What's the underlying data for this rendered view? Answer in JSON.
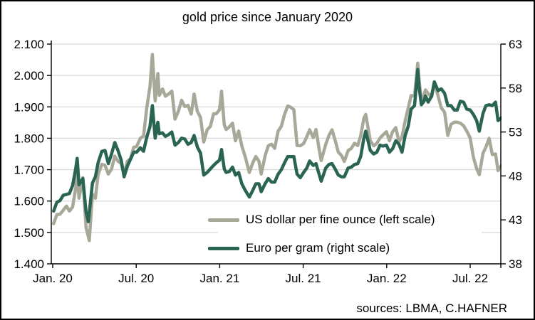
{
  "title": "gold price since January 2020",
  "source_note": "sources: LBMA, C.HAFNER",
  "colors": {
    "usd_line": "#a8a899",
    "eur_line": "#2a6453",
    "gridline": "#d9d9d9",
    "axis": "#000000",
    "background": "#ffffff",
    "border": "#000000",
    "text": "#000000"
  },
  "legend": [
    {
      "label": "US dollar per fine ounce (left scale)",
      "color": "#a8a899"
    },
    {
      "label": "Euro per gram (right scale)",
      "color": "#2a6453"
    }
  ],
  "chart_data": {
    "type": "line",
    "title": "gold price since January 2020",
    "xlabel": "",
    "grid": true,
    "legend_position": "inside lower center-right",
    "left_axis": {
      "name": "US dollar per fine ounce",
      "min": 1400,
      "max": 2100,
      "ticks": [
        {
          "label": "2.100",
          "value": 2100
        },
        {
          "label": "2.000",
          "value": 2000
        },
        {
          "label": "1.900",
          "value": 1900
        },
        {
          "label": "1.800",
          "value": 1800
        },
        {
          "label": "1.700",
          "value": 1700
        },
        {
          "label": "1.600",
          "value": 1600
        },
        {
          "label": "1.500",
          "value": 1500
        },
        {
          "label": "1.400",
          "value": 1400
        }
      ]
    },
    "right_axis": {
      "name": "Euro per gram",
      "min": 38,
      "max": 63,
      "ticks": [
        {
          "label": "63",
          "value": 63
        },
        {
          "label": "58",
          "value": 58
        },
        {
          "label": "53",
          "value": 53
        },
        {
          "label": "48",
          "value": 48
        },
        {
          "label": "43",
          "value": 43
        },
        {
          "label": "38",
          "value": 38
        }
      ]
    },
    "x_ticks": [
      {
        "label": "Jan. 20",
        "month": 0
      },
      {
        "label": "Jul. 20",
        "month": 6
      },
      {
        "label": "Jan. 21",
        "month": 12
      },
      {
        "label": "Jul. 21",
        "month": 18
      },
      {
        "label": "Jan. 22",
        "month": 24
      },
      {
        "label": "Jul. 22",
        "month": 30
      }
    ],
    "dates": [
      "2020-01-03",
      "2020-01-10",
      "2020-01-17",
      "2020-01-24",
      "2020-01-31",
      "2020-02-07",
      "2020-02-14",
      "2020-02-21",
      "2020-02-24",
      "2020-02-28",
      "2020-03-06",
      "2020-03-13",
      "2020-03-18",
      "2020-03-20",
      "2020-03-27",
      "2020-04-03",
      "2020-04-09",
      "2020-04-17",
      "2020-04-24",
      "2020-05-01",
      "2020-05-08",
      "2020-05-15",
      "2020-05-22",
      "2020-05-29",
      "2020-06-05",
      "2020-06-12",
      "2020-06-19",
      "2020-06-26",
      "2020-07-02",
      "2020-07-10",
      "2020-07-17",
      "2020-07-24",
      "2020-07-31",
      "2020-08-06",
      "2020-08-12",
      "2020-08-18",
      "2020-08-21",
      "2020-08-28",
      "2020-09-04",
      "2020-09-11",
      "2020-09-18",
      "2020-09-25",
      "2020-10-02",
      "2020-10-09",
      "2020-10-16",
      "2020-10-23",
      "2020-10-30",
      "2020-11-06",
      "2020-11-13",
      "2020-11-20",
      "2020-11-27",
      "2020-12-04",
      "2020-12-11",
      "2020-12-18",
      "2020-12-24",
      "2020-12-31",
      "2021-01-05",
      "2021-01-11",
      "2021-01-15",
      "2021-01-22",
      "2021-01-29",
      "2021-02-05",
      "2021-02-12",
      "2021-02-19",
      "2021-02-26",
      "2021-03-05",
      "2021-03-12",
      "2021-03-19",
      "2021-03-26",
      "2021-03-31",
      "2021-04-09",
      "2021-04-16",
      "2021-04-23",
      "2021-04-30",
      "2021-05-07",
      "2021-05-14",
      "2021-05-21",
      "2021-05-28",
      "2021-06-04",
      "2021-06-11",
      "2021-06-18",
      "2021-06-25",
      "2021-07-02",
      "2021-07-09",
      "2021-07-15",
      "2021-07-23",
      "2021-07-29",
      "2021-08-06",
      "2021-08-10",
      "2021-08-20",
      "2021-08-27",
      "2021-09-03",
      "2021-09-10",
      "2021-09-17",
      "2021-09-24",
      "2021-09-30",
      "2021-10-08",
      "2021-10-15",
      "2021-10-22",
      "2021-10-29",
      "2021-11-05",
      "2021-11-12",
      "2021-11-16",
      "2021-11-26",
      "2021-12-03",
      "2021-12-10",
      "2021-12-17",
      "2021-12-23",
      "2021-12-31",
      "2022-01-07",
      "2022-01-14",
      "2022-01-21",
      "2022-01-28",
      "2022-02-04",
      "2022-02-11",
      "2022-02-18",
      "2022-02-24",
      "2022-03-01",
      "2022-03-08",
      "2022-03-11",
      "2022-03-16",
      "2022-03-22",
      "2022-03-25",
      "2022-03-31",
      "2022-04-08",
      "2022-04-14",
      "2022-04-22",
      "2022-04-29",
      "2022-05-06",
      "2022-05-13",
      "2022-05-20",
      "2022-05-27",
      "2022-06-03",
      "2022-06-10",
      "2022-06-17",
      "2022-06-24",
      "2022-07-01",
      "2022-07-08",
      "2022-07-15",
      "2022-07-21",
      "2022-07-29",
      "2022-08-05",
      "2022-08-12",
      "2022-08-19",
      "2022-08-26",
      "2022-09-01",
      "2022-09-08"
    ],
    "series": [
      {
        "name": "US dollar per fine ounce (left scale)",
        "axis": "left",
        "color": "#a8a899",
        "values": [
          1528,
          1557,
          1558,
          1571,
          1584,
          1568,
          1581,
          1643,
          1689,
          1609,
          1674,
          1516,
          1487,
          1474,
          1621,
          1609,
          1684,
          1717,
          1714,
          1686,
          1702,
          1743,
          1727,
          1720,
          1683,
          1727,
          1735,
          1771,
          1774,
          1800,
          1807,
          1897,
          1964,
          2067,
          1919,
          2006,
          1937,
          1957,
          1934,
          1941,
          1950,
          1861,
          1886,
          1921,
          1901,
          1905,
          1877,
          1941,
          1886,
          1866,
          1788,
          1827,
          1838,
          1878,
          1878,
          1891,
          1950,
          1843,
          1828,
          1836,
          1848,
          1792,
          1823,
          1775,
          1743,
          1691,
          1720,
          1742,
          1727,
          1686,
          1744,
          1776,
          1781,
          1768,
          1823,
          1838,
          1876,
          1903,
          1899,
          1891,
          1777,
          1776,
          1783,
          1805,
          1827,
          1802,
          1828,
          1761,
          1729,
          1781,
          1809,
          1827,
          1794,
          1756,
          1745,
          1726,
          1761,
          1768,
          1784,
          1777,
          1808,
          1864,
          1876,
          1792,
          1776,
          1784,
          1801,
          1810,
          1821,
          1792,
          1821,
          1834,
          1788,
          1805,
          1856,
          1898,
          1936,
          1935,
          2039,
          1985,
          1918,
          1938,
          1954,
          1942,
          1932,
          1978,
          1935,
          1897,
          1883,
          1809,
          1844,
          1851,
          1851,
          1848,
          1840,
          1823,
          1801,
          1740,
          1704,
          1684,
          1752,
          1772,
          1800,
          1748,
          1750,
          1697,
          1713
        ]
      },
      {
        "name": "Euro per gram (right scale)",
        "axis": "right",
        "color": "#2a6453",
        "values": [
          44.0,
          45.0,
          45.2,
          45.8,
          45.9,
          46.0,
          46.9,
          48.9,
          50.0,
          47.0,
          47.7,
          43.9,
          42.8,
          43.8,
          47.2,
          47.9,
          49.5,
          50.8,
          50.9,
          49.4,
          50.5,
          51.8,
          50.9,
          49.8,
          47.9,
          49.1,
          49.9,
          50.7,
          50.7,
          51.2,
          50.8,
          52.4,
          53.6,
          56.0,
          52.3,
          54.1,
          52.8,
          52.9,
          52.5,
          52.7,
          53.0,
          51.5,
          51.8,
          52.3,
          52.2,
          51.6,
          51.8,
          52.6,
          51.3,
          50.6,
          48.1,
          48.4,
          48.8,
          49.2,
          49.5,
          49.8,
          51.0,
          48.8,
          48.4,
          48.5,
          49.0,
          48.1,
          48.4,
          47.1,
          46.4,
          45.6,
          46.3,
          47.1,
          47.1,
          46.2,
          47.1,
          47.7,
          47.3,
          47.3,
          48.2,
          48.7,
          49.5,
          50.2,
          50.2,
          50.2,
          48.2,
          47.8,
          48.4,
          48.9,
          49.7,
          49.2,
          49.4,
          48.1,
          47.4,
          48.9,
          49.3,
          49.4,
          48.8,
          48.1,
          47.9,
          47.9,
          48.9,
          49.0,
          49.3,
          49.4,
          50.2,
          52.3,
          53.1,
          50.9,
          50.5,
          50.7,
          51.5,
          51.4,
          51.5,
          50.7,
          51.1,
          52.0,
          51.6,
          50.7,
          52.6,
          53.7,
          55.6,
          56.0,
          60.1,
          58.1,
          56.1,
          56.5,
          57.1,
          56.4,
          57.1,
          58.7,
          57.7,
          57.9,
          57.4,
          56.0,
          56.0,
          55.5,
          55.5,
          56.5,
          56.4,
          55.6,
          55.5,
          55.0,
          54.3,
          53.1,
          55.1,
          56.0,
          56.1,
          56.0,
          56.4,
          54.3,
          54.6
        ]
      }
    ]
  }
}
